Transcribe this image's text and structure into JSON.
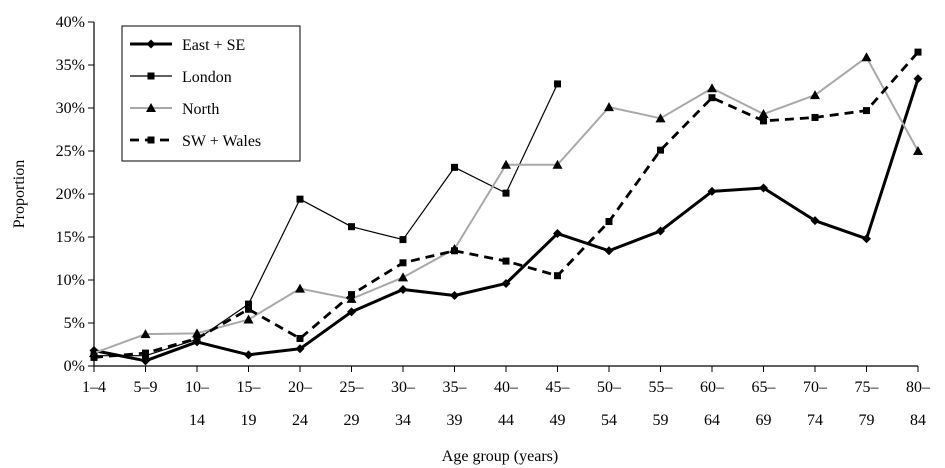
{
  "chart_data": {
    "type": "line",
    "xlabel": "Age group (years)",
    "ylabel": "Proportion",
    "ylim": [
      0,
      40
    ],
    "ytick_values": [
      0,
      5,
      10,
      15,
      20,
      25,
      30,
      35,
      40
    ],
    "ytick_labels": [
      "0%",
      "5%",
      "10%",
      "15%",
      "20%",
      "25%",
      "30%",
      "35%",
      "40%"
    ],
    "categories": [
      "1–4",
      "5–9",
      "10–14",
      "15–19",
      "20–24",
      "25–29",
      "30–34",
      "35–39",
      "40–44",
      "45–49",
      "50–54",
      "55–59",
      "60–64",
      "65–69",
      "70–74",
      "75–79",
      "80–84"
    ],
    "category_lines": [
      [
        "1–4",
        ""
      ],
      [
        "5–9",
        ""
      ],
      [
        "10–",
        "14"
      ],
      [
        "15–",
        "19"
      ],
      [
        "20–",
        "24"
      ],
      [
        "25–",
        "29"
      ],
      [
        "30–",
        "34"
      ],
      [
        "35–",
        "39"
      ],
      [
        "40–",
        "44"
      ],
      [
        "45–",
        "49"
      ],
      [
        "50–",
        "54"
      ],
      [
        "55–",
        "59"
      ],
      [
        "60–",
        "64"
      ],
      [
        "65–",
        "69"
      ],
      [
        "70–",
        "74"
      ],
      [
        "75–",
        "79"
      ],
      [
        "80–",
        "84"
      ]
    ],
    "legend_position": "top-left",
    "grid": false,
    "series": [
      {
        "name": "East + SE",
        "marker": "diamond",
        "line": "solid-thick",
        "color": "#000000",
        "values": [
          1.8,
          0.6,
          2.8,
          1.3,
          2.0,
          6.3,
          8.9,
          8.2,
          9.6,
          15.4,
          13.4,
          15.7,
          20.3,
          20.7,
          16.9,
          14.8,
          33.4
        ]
      },
      {
        "name": "London",
        "marker": "square",
        "line": "solid-thin",
        "color": "#000000",
        "values": [
          1.2,
          1.2,
          3.1,
          7.2,
          19.4,
          16.2,
          14.7,
          23.1,
          20.1,
          32.8,
          null,
          null,
          null,
          null,
          null,
          null,
          null
        ]
      },
      {
        "name": "North",
        "marker": "triangle",
        "line": "solid-gray",
        "color": "#a8a8a8",
        "values": [
          1.5,
          3.7,
          3.8,
          5.4,
          9.0,
          7.8,
          10.3,
          13.6,
          23.4,
          23.4,
          30.1,
          28.8,
          32.3,
          29.3,
          31.5,
          35.9,
          25.0
        ]
      },
      {
        "name": "SW + Wales",
        "marker": "square",
        "line": "dashed-thick",
        "color": "#000000",
        "values": [
          1.0,
          1.5,
          3.2,
          6.6,
          3.2,
          8.3,
          12.0,
          13.4,
          12.2,
          10.5,
          16.8,
          25.1,
          31.2,
          28.5,
          28.9,
          29.7,
          36.5
        ]
      }
    ]
  }
}
